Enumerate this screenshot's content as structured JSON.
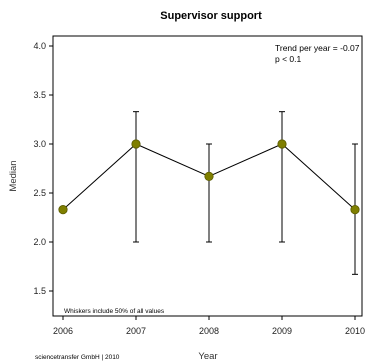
{
  "chart_data": {
    "type": "line",
    "title": "Supervisor support",
    "xlabel": "Year",
    "ylabel": "Median",
    "x": [
      "2006",
      "2007",
      "2008",
      "2009",
      "2010"
    ],
    "yticks": [
      "1.5",
      "2.0",
      "2.5",
      "3.0",
      "3.5",
      "4.0"
    ],
    "ylim": [
      1.25,
      4.1
    ],
    "series": [
      {
        "values": [
          2.33,
          3.0,
          2.67,
          3.0,
          2.33
        ],
        "whisker_low": [
          null,
          2.0,
          2.0,
          2.0,
          1.67
        ],
        "whisker_high": [
          null,
          3.33,
          3.0,
          3.33,
          3.0
        ]
      }
    ],
    "annotations": {
      "trend": "Trend per year = -0.07",
      "pvalue": "p < 0.1",
      "whiskers_note": "Whiskers include 50% of all values",
      "credit": "sciencetransfer GmbH | 2010"
    },
    "grid": false,
    "colors": {
      "point": "#7f7f00",
      "line": "#000000"
    }
  }
}
